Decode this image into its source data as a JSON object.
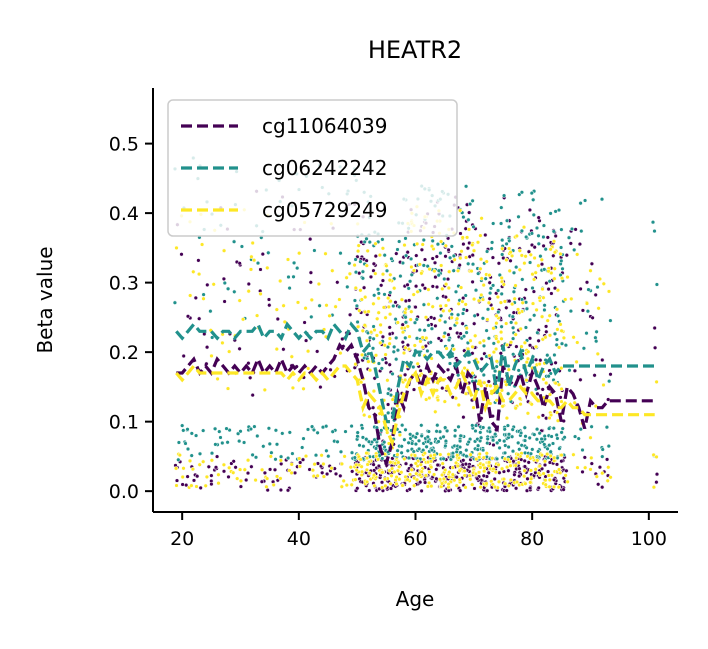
{
  "chart_data": {
    "type": "scatter",
    "title": "HEATR2",
    "xlabel": "Age",
    "ylabel": "Beta value",
    "xlim": [
      15,
      105
    ],
    "ylim": [
      -0.03,
      0.58
    ],
    "xticks": [
      "20",
      "40",
      "60",
      "80",
      "100"
    ],
    "yticks": [
      "0.0",
      "0.1",
      "0.2",
      "0.3",
      "0.4",
      "0.5"
    ],
    "grid": false,
    "legend_position": "top-left",
    "series": [
      {
        "name": "cg11064039",
        "color": "#440154",
        "line": {
          "x": [
            19,
            20,
            21,
            22,
            23,
            24,
            25,
            26,
            27,
            28,
            29,
            30,
            31,
            32,
            33,
            34,
            35,
            36,
            37,
            38,
            39,
            40,
            41,
            42,
            43,
            44,
            45,
            46,
            47,
            48,
            49,
            50,
            51,
            52,
            53,
            54,
            55,
            56,
            57,
            58,
            59,
            60,
            61,
            62,
            63,
            64,
            65,
            66,
            67,
            68,
            69,
            70,
            71,
            72,
            73,
            74,
            75,
            76,
            77,
            78,
            79,
            80,
            81,
            82,
            83,
            84,
            85,
            86,
            87,
            88,
            89,
            90,
            91,
            92,
            93,
            101
          ],
          "y": [
            0.17,
            0.17,
            0.18,
            0.19,
            0.17,
            0.18,
            0.17,
            0.19,
            0.18,
            0.17,
            0.18,
            0.17,
            0.18,
            0.17,
            0.19,
            0.17,
            0.18,
            0.17,
            0.19,
            0.17,
            0.18,
            0.17,
            0.18,
            0.17,
            0.18,
            0.17,
            0.18,
            0.19,
            0.21,
            0.2,
            0.21,
            0.19,
            0.16,
            0.12,
            0.11,
            0.06,
            0.04,
            0.07,
            0.14,
            0.12,
            0.16,
            0.17,
            0.15,
            0.18,
            0.16,
            0.18,
            0.17,
            0.16,
            0.18,
            0.14,
            0.17,
            0.16,
            0.1,
            0.15,
            0.1,
            0.09,
            0.18,
            0.16,
            0.15,
            0.17,
            0.14,
            0.17,
            0.15,
            0.12,
            0.15,
            0.14,
            0.1,
            0.15,
            0.14,
            0.12,
            0.09,
            0.13,
            0.12,
            0.12,
            0.13,
            0.13
          ]
        }
      },
      {
        "name": "cg06242242",
        "color": "#21918c",
        "line": {
          "x": [
            19,
            20,
            21,
            22,
            23,
            24,
            25,
            26,
            27,
            28,
            29,
            30,
            31,
            32,
            33,
            34,
            35,
            36,
            37,
            38,
            39,
            40,
            41,
            42,
            43,
            44,
            45,
            46,
            47,
            48,
            49,
            50,
            51,
            52,
            53,
            54,
            55,
            56,
            57,
            58,
            59,
            60,
            61,
            62,
            63,
            64,
            65,
            66,
            67,
            68,
            69,
            70,
            71,
            72,
            73,
            74,
            75,
            76,
            77,
            78,
            79,
            80,
            81,
            82,
            83,
            84,
            85,
            86,
            87,
            88,
            89,
            90,
            91,
            92,
            93,
            101
          ],
          "y": [
            0.23,
            0.22,
            0.23,
            0.24,
            0.23,
            0.23,
            0.23,
            0.22,
            0.23,
            0.23,
            0.22,
            0.23,
            0.23,
            0.23,
            0.24,
            0.22,
            0.23,
            0.23,
            0.22,
            0.24,
            0.23,
            0.22,
            0.23,
            0.22,
            0.23,
            0.23,
            0.22,
            0.24,
            0.23,
            0.22,
            0.24,
            0.23,
            0.2,
            0.21,
            0.18,
            0.14,
            0.1,
            0.1,
            0.15,
            0.19,
            0.18,
            0.2,
            0.2,
            0.19,
            0.2,
            0.2,
            0.19,
            0.2,
            0.18,
            0.19,
            0.2,
            0.19,
            0.17,
            0.18,
            0.19,
            0.14,
            0.21,
            0.15,
            0.18,
            0.2,
            0.17,
            0.19,
            0.16,
            0.18,
            0.19,
            0.17,
            0.18,
            0.18,
            0.18,
            0.18,
            0.18,
            0.18,
            0.18,
            0.18,
            0.18,
            0.18
          ]
        }
      },
      {
        "name": "cg05729249",
        "color": "#fde725",
        "line": {
          "x": [
            19,
            20,
            21,
            22,
            23,
            24,
            25,
            26,
            27,
            28,
            29,
            30,
            31,
            32,
            33,
            34,
            35,
            36,
            37,
            38,
            39,
            40,
            41,
            42,
            43,
            44,
            45,
            46,
            47,
            48,
            49,
            50,
            51,
            52,
            53,
            54,
            55,
            56,
            57,
            58,
            59,
            60,
            61,
            62,
            63,
            64,
            65,
            66,
            67,
            68,
            69,
            70,
            71,
            72,
            73,
            74,
            75,
            76,
            77,
            78,
            79,
            80,
            81,
            82,
            83,
            84,
            85,
            86,
            87,
            88,
            89,
            90,
            91,
            92,
            93,
            101
          ],
          "y": [
            0.17,
            0.16,
            0.17,
            0.18,
            0.17,
            0.17,
            0.17,
            0.17,
            0.17,
            0.17,
            0.17,
            0.17,
            0.17,
            0.17,
            0.17,
            0.17,
            0.17,
            0.17,
            0.17,
            0.16,
            0.17,
            0.16,
            0.17,
            0.17,
            0.16,
            0.17,
            0.16,
            0.17,
            0.18,
            0.18,
            0.17,
            0.16,
            0.12,
            0.14,
            0.13,
            0.12,
            0.09,
            0.07,
            0.11,
            0.14,
            0.16,
            0.17,
            0.14,
            0.16,
            0.14,
            0.16,
            0.16,
            0.14,
            0.15,
            0.17,
            0.15,
            0.13,
            0.16,
            0.12,
            0.14,
            0.15,
            0.13,
            0.13,
            0.14,
            0.15,
            0.14,
            0.14,
            0.13,
            0.13,
            0.13,
            0.12,
            0.12,
            0.13,
            0.12,
            0.12,
            0.11,
            0.11,
            0.11,
            0.11,
            0.11,
            0.11
          ]
        }
      }
    ]
  }
}
